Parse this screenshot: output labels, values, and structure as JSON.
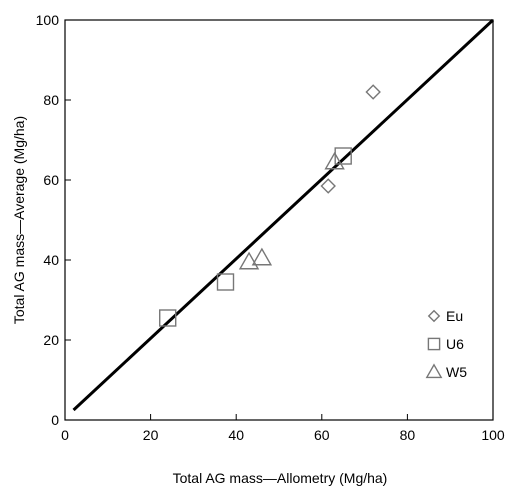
{
  "chart_data": {
    "type": "scatter",
    "title": "",
    "xlabel": "Total AG mass—Allometry (Mg/ha)",
    "ylabel": "Total AG mass—Average (Mg/ha)",
    "xlim": [
      0,
      100
    ],
    "ylim": [
      0,
      100
    ],
    "xticks": [
      0,
      20,
      40,
      60,
      80,
      100
    ],
    "yticks": [
      0,
      20,
      40,
      60,
      80,
      100
    ],
    "grid": false,
    "legend_position": "bottom-right",
    "reference_line": {
      "x": [
        2,
        100
      ],
      "y": [
        2.5,
        100
      ]
    },
    "series": [
      {
        "name": "Eu",
        "marker": "diamond",
        "x": [
          72,
          61.5
        ],
        "y": [
          82,
          58.5
        ]
      },
      {
        "name": "U6",
        "marker": "square",
        "x": [
          24,
          37.5,
          65
        ],
        "y": [
          25.5,
          34.5,
          66
        ]
      },
      {
        "name": "W5",
        "marker": "triangle",
        "x": [
          43,
          46,
          63
        ],
        "y": [
          39.5,
          40.5,
          64.5
        ]
      }
    ]
  }
}
